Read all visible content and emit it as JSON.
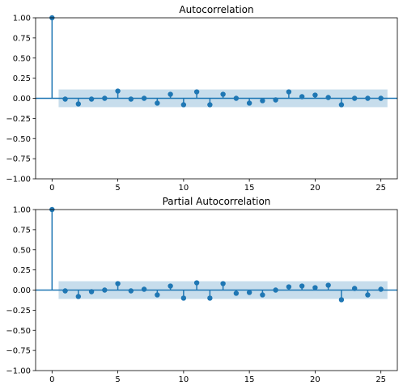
{
  "colors": {
    "accent": "#1f77b4",
    "band": "#1f77b4",
    "axis": "#000000",
    "background": "#ffffff"
  },
  "chart_data": [
    {
      "type": "stem",
      "title": "Autocorrelation",
      "xlabel": "",
      "ylabel": "",
      "xlim": [
        -1.25,
        26.25
      ],
      "ylim": [
        -1.0,
        1.0
      ],
      "xticks": [
        0,
        5,
        10,
        15,
        20,
        25
      ],
      "xtick_labels": [
        "0",
        "5",
        "10",
        "15",
        "20",
        "25"
      ],
      "yticks": [
        -1.0,
        -0.75,
        -0.5,
        -0.25,
        0.0,
        0.25,
        0.5,
        0.75,
        1.0
      ],
      "ytick_labels": [
        "−1.00",
        "−0.75",
        "−0.50",
        "−0.25",
        "0.00",
        "0.25",
        "0.50",
        "0.75",
        "1.00"
      ],
      "grid": false,
      "lags": [
        0,
        1,
        2,
        3,
        4,
        5,
        6,
        7,
        8,
        9,
        10,
        11,
        12,
        13,
        14,
        15,
        16,
        17,
        18,
        19,
        20,
        21,
        22,
        23,
        24,
        25
      ],
      "values": [
        1.0,
        -0.01,
        -0.07,
        -0.01,
        0.0,
        0.09,
        -0.01,
        0.0,
        -0.06,
        0.05,
        -0.08,
        0.08,
        -0.08,
        0.05,
        0.0,
        -0.06,
        -0.03,
        -0.02,
        0.08,
        0.02,
        0.04,
        0.01,
        -0.08,
        0.0,
        0.0,
        0.0
      ],
      "confidence_band": {
        "x": [
          0.5,
          25.5
        ],
        "upper": [
          0.11,
          0.11
        ],
        "lower": [
          -0.11,
          -0.11
        ]
      }
    },
    {
      "type": "stem",
      "title": "Partial Autocorrelation",
      "xlabel": "",
      "ylabel": "",
      "xlim": [
        -1.25,
        26.25
      ],
      "ylim": [
        -1.0,
        1.0
      ],
      "xticks": [
        0,
        5,
        10,
        15,
        20,
        25
      ],
      "xtick_labels": [
        "0",
        "5",
        "10",
        "15",
        "20",
        "25"
      ],
      "yticks": [
        -1.0,
        -0.75,
        -0.5,
        -0.25,
        0.0,
        0.25,
        0.5,
        0.75,
        1.0
      ],
      "ytick_labels": [
        "−1.00",
        "−0.75",
        "−0.50",
        "−0.25",
        "0.00",
        "0.25",
        "0.50",
        "0.75",
        "1.00"
      ],
      "grid": false,
      "lags": [
        0,
        1,
        2,
        3,
        4,
        5,
        6,
        7,
        8,
        9,
        10,
        11,
        12,
        13,
        14,
        15,
        16,
        17,
        18,
        19,
        20,
        21,
        22,
        23,
        24,
        25
      ],
      "values": [
        1.0,
        -0.01,
        -0.08,
        -0.02,
        0.0,
        0.08,
        -0.01,
        0.01,
        -0.06,
        0.05,
        -0.1,
        0.09,
        -0.1,
        0.08,
        -0.04,
        -0.03,
        -0.06,
        0.0,
        0.04,
        0.05,
        0.03,
        0.06,
        -0.12,
        0.02,
        -0.06,
        0.01
      ],
      "confidence_band": {
        "x": [
          0.5,
          25.5
        ],
        "upper": [
          0.11,
          0.11
        ],
        "lower": [
          -0.11,
          -0.11
        ]
      }
    }
  ]
}
